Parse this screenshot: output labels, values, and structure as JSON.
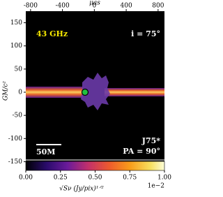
{
  "chart_data": {
    "type": "image",
    "xlabel": "μas",
    "ylabel": "GM/c²",
    "xlim": [
      -860,
      880
    ],
    "xticks": [
      -800,
      -400,
      0,
      400,
      800
    ],
    "ylim": [
      -175,
      175
    ],
    "yticks": [
      150,
      100,
      50,
      0,
      -50,
      -100,
      -150
    ],
    "annotations": [
      "43 GHz",
      "i = 75°",
      "J75*",
      "PA = 90°",
      "50M"
    ],
    "colorbar": {
      "label": "√Sν  (Jy/pix)¹ᐟ²",
      "lim": [
        0,
        1
      ],
      "ticks": [
        {
          "value": 0,
          "label": "0.00"
        },
        {
          "value": 0.25,
          "label": "0.25"
        },
        {
          "value": 0.5,
          "label": "0.50"
        },
        {
          "value": 0.75,
          "label": "0.75"
        },
        {
          "value": 1,
          "label": "1.00"
        }
      ],
      "offset": "1e−2"
    }
  }
}
